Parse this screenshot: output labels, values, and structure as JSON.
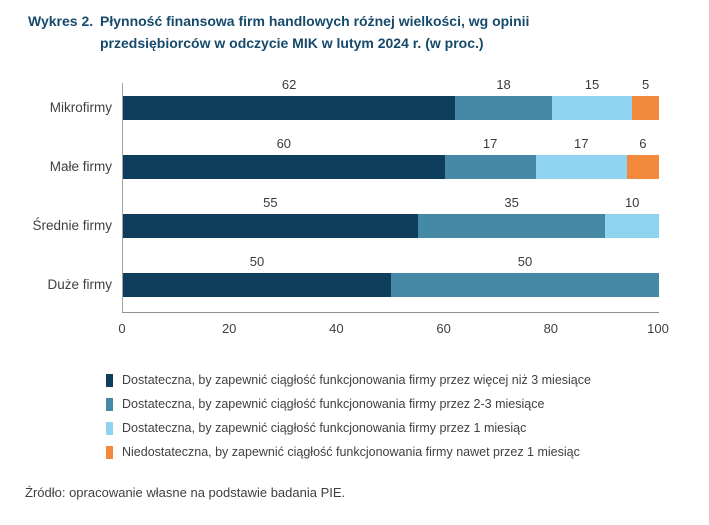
{
  "title": {
    "label": "Wykres 2.",
    "line1": "Płynność finansowa firm handlowych różnej wielkości, wg opinii",
    "line2": "przedsiębiorców w odczycie MIK w lutym 2024 r. (w proc.)"
  },
  "colors": {
    "title": "#164a6b",
    "series_dark_navy": "#0e3e5c",
    "series_medium_blue": "#4589a6",
    "series_light_blue": "#8ed3ef",
    "series_orange": "#f2893c"
  },
  "chart_data": {
    "type": "bar",
    "orientation": "horizontal-stacked",
    "title": "Płynność finansowa firm handlowych różnej wielkości, wg opinii przedsiębiorców w odczycie MIK w lutym 2024 r. (w proc.)",
    "categories": [
      "Mikrofirmy",
      "Małe firmy",
      "Średnie firmy",
      "Duże firmy"
    ],
    "series": [
      {
        "name": "Dostateczna, by zapewnić ciągłość funkcjonowania firmy przez więcej niż 3 miesiące",
        "color": "#0e3e5c",
        "values": [
          62,
          60,
          55,
          50
        ]
      },
      {
        "name": "Dostateczna, by zapewnić ciągłość funkcjonowania firmy przez 2-3 miesiące",
        "color": "#4589a6",
        "values": [
          18,
          17,
          35,
          50
        ]
      },
      {
        "name": "Dostateczna, by zapewnić ciągłość funkcjonowania firmy przez 1 miesiąc",
        "color": "#8ed3ef",
        "values": [
          15,
          17,
          10,
          0
        ]
      },
      {
        "name": "Niedostateczna, by zapewnić ciągłość funkcjonowania firmy nawet przez 1 miesiąc",
        "color": "#f2893c",
        "values": [
          5,
          6,
          0,
          0
        ]
      }
    ],
    "xlim": [
      0,
      100
    ],
    "x_ticks": [
      0,
      20,
      40,
      60,
      80,
      100
    ],
    "value_labels_shown": true,
    "legend_position": "bottom-left",
    "grid": false
  },
  "source": "Źródło: opracowanie własne na podstawie badania PIE."
}
